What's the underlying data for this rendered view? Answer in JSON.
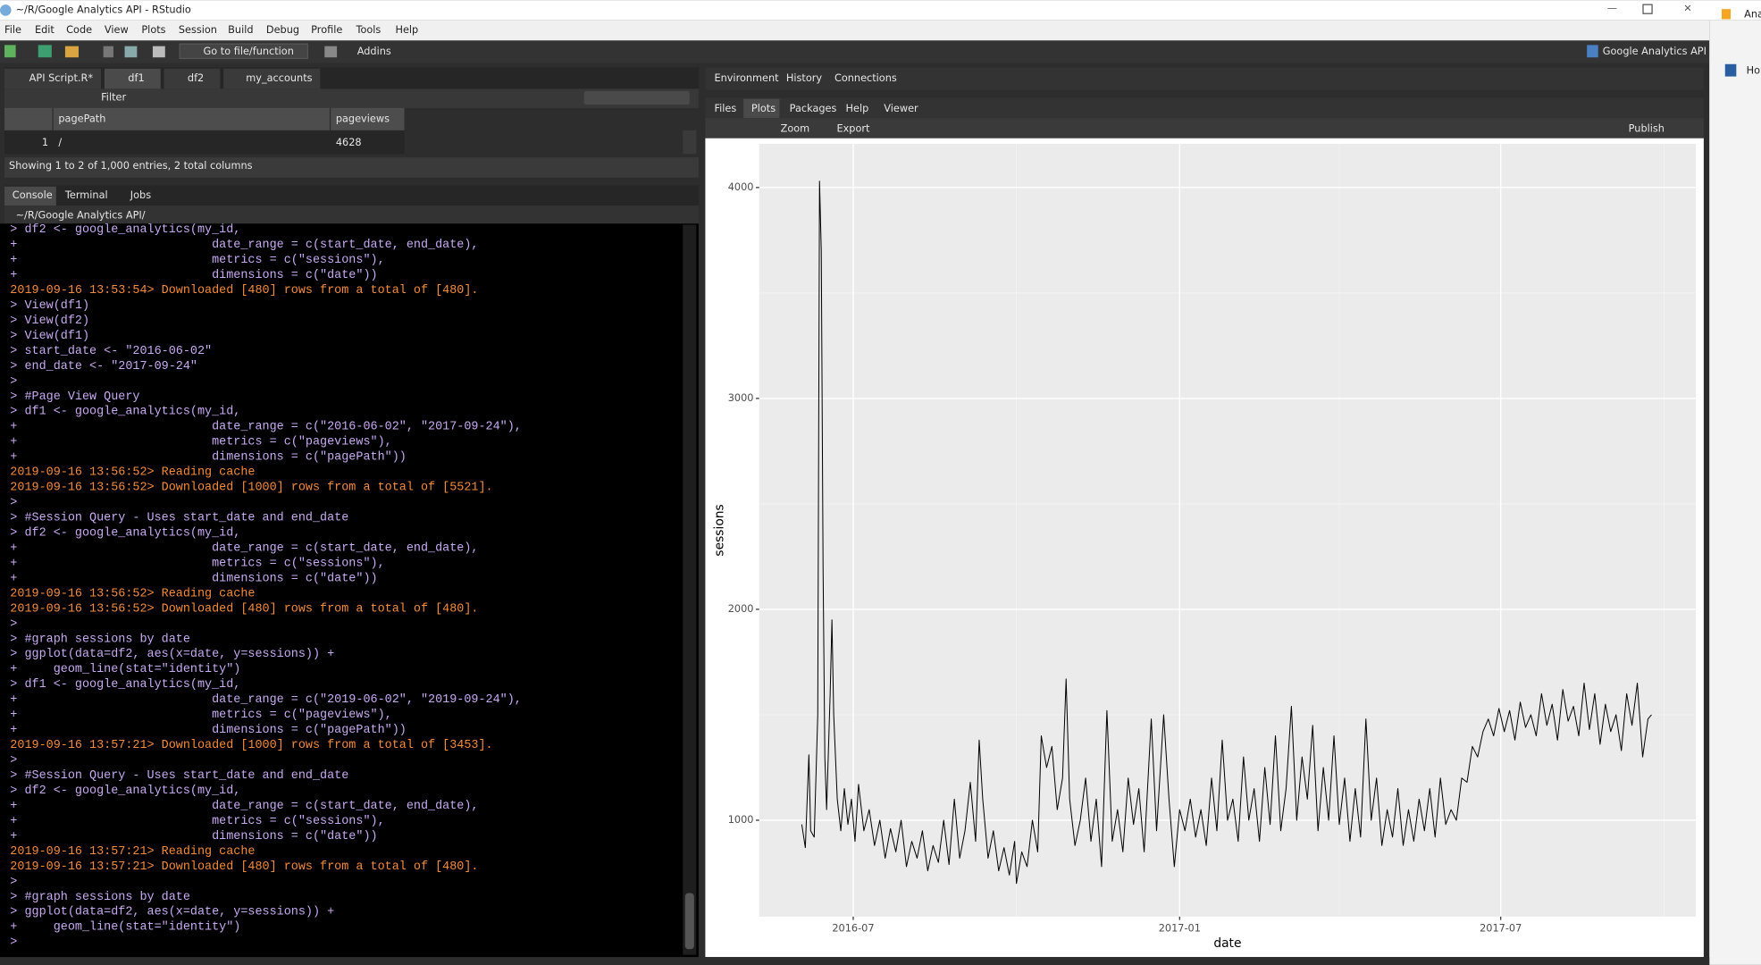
{
  "window": {
    "title": "~/R/Google Analytics API - RStudio"
  },
  "menu": [
    "File",
    "Edit",
    "Code",
    "View",
    "Plots",
    "Session",
    "Build",
    "Debug",
    "Profile",
    "Tools",
    "Help"
  ],
  "toolbar": {
    "goto": "Go to file/function",
    "addins": "Addins",
    "project": "Google Analytics API"
  },
  "source_tabs": [
    "API Script.R*",
    "df1",
    "df2",
    "my_accounts"
  ],
  "viewer": {
    "filter": "Filter",
    "columns": [
      "pagePath",
      "pageviews"
    ],
    "rows": [
      {
        "index": "1",
        "cells": [
          "/",
          "4628"
        ]
      }
    ],
    "status": "Showing 1 to 2 of 1,000 entries, 2 total columns"
  },
  "console": {
    "tabs": [
      "Console",
      "Terminal",
      "Jobs"
    ],
    "path": "~/R/Google Analytics API/",
    "colors": {
      "input": "#c8aaf2",
      "message": "#f38b3c"
    },
    "lines": [
      {
        "text": "> df2 <- google_analytics(my_id,",
        "style": "input"
      },
      {
        "text": "+                           date_range = c(start_date, end_date),",
        "style": "input"
      },
      {
        "text": "+                           metrics = c(\"sessions\"),",
        "style": "input"
      },
      {
        "text": "+                           dimensions = c(\"date\"))",
        "style": "input"
      },
      {
        "text": "2019-09-16 13:53:54> Downloaded [480] rows from a total of [480].",
        "style": "message"
      },
      {
        "text": "> View(df1)",
        "style": "input"
      },
      {
        "text": "> View(df2)",
        "style": "input"
      },
      {
        "text": "> View(df1)",
        "style": "input"
      },
      {
        "text": "> start_date <- \"2016-06-02\"",
        "style": "input"
      },
      {
        "text": "> end_date <- \"2017-09-24\"",
        "style": "input"
      },
      {
        "text": ">",
        "style": "input"
      },
      {
        "text": "> #Page View Query",
        "style": "input"
      },
      {
        "text": "> df1 <- google_analytics(my_id,",
        "style": "input"
      },
      {
        "text": "+                           date_range = c(\"2016-06-02\", \"2017-09-24\"),",
        "style": "input"
      },
      {
        "text": "+                           metrics = c(\"pageviews\"),",
        "style": "input"
      },
      {
        "text": "+                           dimensions = c(\"pagePath\"))",
        "style": "input"
      },
      {
        "text": "2019-09-16 13:56:52> Reading cache",
        "style": "message"
      },
      {
        "text": "2019-09-16 13:56:52> Downloaded [1000] rows from a total of [5521].",
        "style": "message"
      },
      {
        "text": ">",
        "style": "input"
      },
      {
        "text": "> #Session Query - Uses start_date and end_date",
        "style": "input"
      },
      {
        "text": "> df2 <- google_analytics(my_id,",
        "style": "input"
      },
      {
        "text": "+                           date_range = c(start_date, end_date),",
        "style": "input"
      },
      {
        "text": "+                           metrics = c(\"sessions\"),",
        "style": "input"
      },
      {
        "text": "+                           dimensions = c(\"date\"))",
        "style": "input"
      },
      {
        "text": "2019-09-16 13:56:52> Reading cache",
        "style": "message"
      },
      {
        "text": "2019-09-16 13:56:52> Downloaded [480] rows from a total of [480].",
        "style": "message"
      },
      {
        "text": ">",
        "style": "input"
      },
      {
        "text": "> #graph sessions by date",
        "style": "input"
      },
      {
        "text": "> ggplot(data=df2, aes(x=date, y=sessions)) +",
        "style": "input"
      },
      {
        "text": "+     geom_line(stat=\"identity\")",
        "style": "input"
      },
      {
        "text": "> df1 <- google_analytics(my_id,",
        "style": "input"
      },
      {
        "text": "+                           date_range = c(\"2019-06-02\", \"2019-09-24\"),",
        "style": "input"
      },
      {
        "text": "+                           metrics = c(\"pageviews\"),",
        "style": "input"
      },
      {
        "text": "+                           dimensions = c(\"pagePath\"))",
        "style": "input"
      },
      {
        "text": "2019-09-16 13:57:21> Downloaded [1000] rows from a total of [3453].",
        "style": "message"
      },
      {
        "text": ">",
        "style": "input"
      },
      {
        "text": "> #Session Query - Uses start_date and end_date",
        "style": "input"
      },
      {
        "text": "> df2 <- google_analytics(my_id,",
        "style": "input"
      },
      {
        "text": "+                           date_range = c(start_date, end_date),",
        "style": "input"
      },
      {
        "text": "+                           metrics = c(\"sessions\"),",
        "style": "input"
      },
      {
        "text": "+                           dimensions = c(\"date\"))",
        "style": "input"
      },
      {
        "text": "2019-09-16 13:57:21> Reading cache",
        "style": "message"
      },
      {
        "text": "2019-09-16 13:57:21> Downloaded [480] rows from a total of [480].",
        "style": "message"
      },
      {
        "text": ">",
        "style": "input"
      },
      {
        "text": "> #graph sessions by date",
        "style": "input"
      },
      {
        "text": "> ggplot(data=df2, aes(x=date, y=sessions)) +",
        "style": "input"
      },
      {
        "text": "+     geom_line(stat=\"identity\")",
        "style": "input"
      },
      {
        "text": ">",
        "style": "input"
      }
    ]
  },
  "env_tabs": [
    "Environment",
    "History",
    "Connections"
  ],
  "files_tabs": [
    "Files",
    "Plots",
    "Packages",
    "Help",
    "Viewer"
  ],
  "plot_toolbar": {
    "zoom": "Zoom",
    "export": "Export",
    "publish": "Publish"
  },
  "side_texts": [
    "Ana",
    "Ho"
  ],
  "chart_data": {
    "type": "line",
    "xlabel": "date",
    "ylabel": "sessions",
    "color": "#000000",
    "grid": true,
    "xlim": [
      -24,
      504
    ],
    "ylim": [
      543,
      4207
    ],
    "xticks": [
      {
        "value": 29,
        "label": "2016-07"
      },
      {
        "value": 213,
        "label": "2017-01"
      },
      {
        "value": 394,
        "label": "2017-07"
      }
    ],
    "yticks": [
      1000,
      2000,
      3000,
      4000
    ],
    "x_minor_ticks": [
      121,
      303,
      486
    ],
    "y_minor_ticks": [
      1500,
      2500,
      3500
    ],
    "x": [
      0,
      2,
      4,
      5,
      7,
      9,
      10,
      11,
      12,
      13,
      14,
      16,
      17,
      18,
      20,
      22,
      24,
      26,
      28,
      30,
      32,
      35,
      38,
      41,
      44,
      47,
      50,
      53,
      56,
      59,
      62,
      65,
      68,
      71,
      74,
      77,
      80,
      83,
      86,
      89,
      92,
      95,
      98,
      100,
      102,
      105,
      108,
      111,
      114,
      117,
      120,
      121,
      124,
      127,
      130,
      133,
      135,
      138,
      141,
      144,
      147,
      149,
      151,
      154,
      157,
      160,
      163,
      166,
      169,
      172,
      175,
      178,
      181,
      184,
      187,
      190,
      193,
      197,
      200,
      204,
      207,
      210,
      213,
      216,
      219,
      222,
      225,
      228,
      231,
      234,
      237,
      240,
      243,
      246,
      249,
      252,
      255,
      258,
      261,
      264,
      267,
      270,
      273,
      276,
      279,
      282,
      285,
      288,
      291,
      294,
      297,
      300,
      303,
      306,
      309,
      312,
      315,
      318,
      321,
      324,
      327,
      330,
      333,
      336,
      339,
      342,
      345,
      348,
      351,
      354,
      357,
      360,
      363,
      366,
      369,
      372,
      375,
      378,
      381,
      384,
      387,
      390,
      393,
      396,
      399,
      402,
      405,
      408,
      411,
      414,
      417,
      420,
      423,
      426,
      429,
      432,
      435,
      438,
      441,
      444,
      447,
      450,
      453,
      456,
      459,
      462,
      465,
      468,
      471,
      474,
      477,
      479
    ],
    "values": [
      980,
      870,
      1310,
      950,
      920,
      1500,
      4030,
      3700,
      2200,
      1300,
      1050,
      1600,
      1950,
      1500,
      1100,
      950,
      1150,
      980,
      1100,
      900,
      1170,
      950,
      1050,
      880,
      1000,
      820,
      960,
      850,
      1000,
      780,
      900,
      820,
      950,
      760,
      880,
      800,
      1000,
      790,
      1100,
      820,
      950,
      1180,
      900,
      1380,
      1100,
      820,
      950,
      760,
      870,
      740,
      900,
      700,
      850,
      780,
      1000,
      850,
      1400,
      1250,
      1350,
      1050,
      1200,
      1670,
      1100,
      880,
      1000,
      1200,
      900,
      1100,
      780,
      1520,
      900,
      1050,
      850,
      1200,
      980,
      1150,
      850,
      1480,
      950,
      1500,
      1100,
      780,
      1050,
      950,
      1100,
      920,
      1050,
      880,
      1200,
      950,
      1380,
      1000,
      1100,
      900,
      1300,
      1000,
      1150,
      900,
      1250,
      980,
      1400,
      950,
      1150,
      1540,
      1000,
      1300,
      1100,
      1450,
      950,
      1250,
      1000,
      1400,
      980,
      1200,
      900,
      1150,
      920,
      1480,
      1000,
      1200,
      880,
      1050,
      920,
      1150,
      880,
      1050,
      900,
      1100,
      950,
      1150,
      920,
      1200,
      980,
      1050,
      1000,
      1200,
      1180,
      1350,
      1300,
      1420,
      1480,
      1400,
      1530,
      1420,
      1520,
      1380,
      1560,
      1440,
      1500,
      1400,
      1600,
      1450,
      1550,
      1380,
      1620,
      1470,
      1540,
      1400,
      1650,
      1430,
      1600,
      1360,
      1550,
      1420,
      1500,
      1330,
      1600,
      1450,
      1650,
      1300,
      1480,
      1500
    ]
  }
}
